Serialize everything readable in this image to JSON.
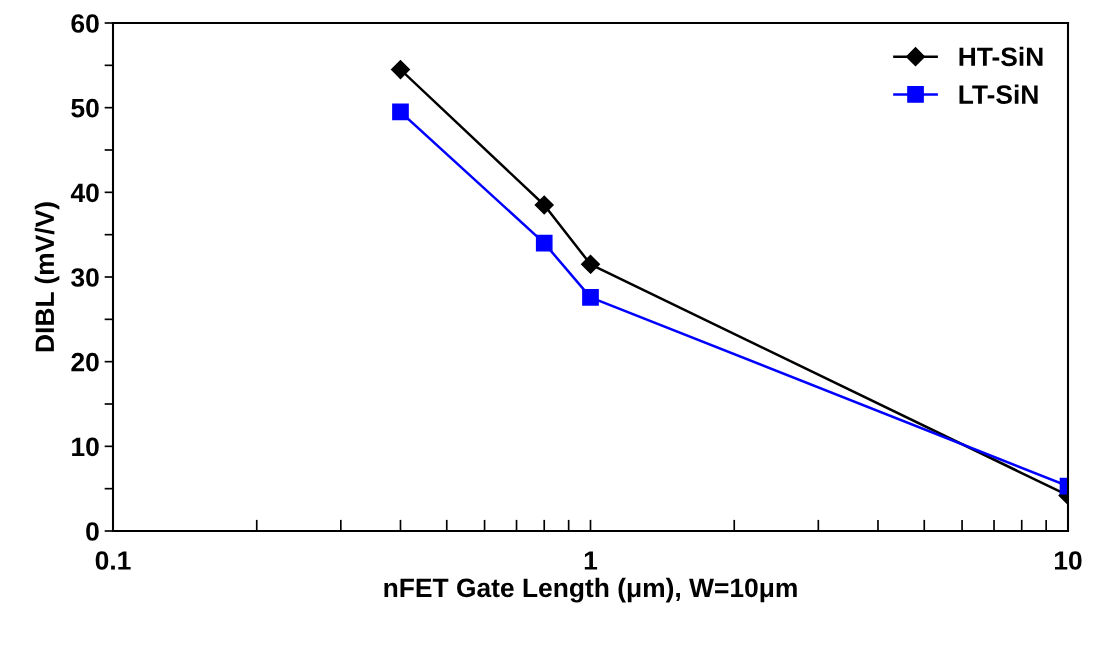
{
  "chart_data": {
    "type": "line",
    "xlabel": "nFET Gate Length (μm), W=10μm",
    "ylabel": "DIBL (mV/V)",
    "log": "x",
    "xlim": [
      0.1,
      10
    ],
    "xticks": [
      0.1,
      {
        "value": 0.2,
        "label": null
      },
      {
        "value": 0.3,
        "label": null
      },
      {
        "value": 0.4,
        "label": null
      },
      {
        "value": 0.5,
        "label": null
      },
      {
        "value": 0.6,
        "label": null
      },
      {
        "value": 0.7,
        "label": null
      },
      {
        "value": 0.8,
        "label": null
      },
      {
        "value": 0.9,
        "label": null
      },
      1,
      {
        "value": 2,
        "label": null
      },
      {
        "value": 3,
        "label": null
      },
      {
        "value": 4,
        "label": null
      },
      {
        "value": 5,
        "label": null
      },
      {
        "value": 6,
        "label": null
      },
      {
        "value": 7,
        "label": null
      },
      {
        "value": 8,
        "label": null
      },
      {
        "value": 9,
        "label": null
      },
      10
    ],
    "ylim": [
      0,
      60
    ],
    "yticks": [
      0,
      {
        "value": 5,
        "label": null
      },
      10,
      {
        "value": 15,
        "label": null
      },
      20,
      {
        "value": 25,
        "label": null
      },
      30,
      {
        "value": 35,
        "label": null
      },
      40,
      {
        "value": 45,
        "label": null
      },
      50,
      {
        "value": 55,
        "label": null
      },
      60
    ],
    "x": [
      0.4,
      0.8,
      1,
      10
    ],
    "series": [
      {
        "name": "HT-SiN",
        "color": "#000000",
        "marker": "diamond",
        "values": [
          54.5,
          38.5,
          31.5,
          4.2
        ]
      },
      {
        "name": "LT-SiN",
        "color": "#0000ff",
        "marker": "square",
        "values": [
          49.5,
          34.0,
          27.6,
          5.3
        ]
      }
    ],
    "legend": "top right",
    "grid": false,
    "line_style": "solid"
  }
}
